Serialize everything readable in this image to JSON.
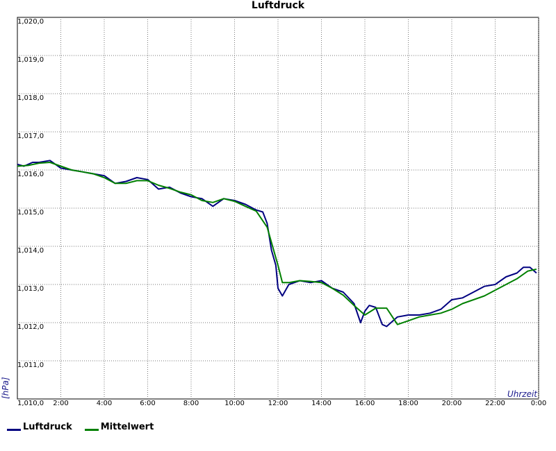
{
  "chart_data": {
    "type": "line",
    "title": "Luftdruck",
    "xlabel": "Uhrzeit",
    "ylabel": "[hPa]",
    "xlim": [
      0,
      24
    ],
    "ylim": [
      1010.0,
      1020.0
    ],
    "grid": true,
    "legend_position": "bottom-left",
    "y_ticks": [
      "1,010,0",
      "1,011,0",
      "1,012,0",
      "1,013,0",
      "1,014,0",
      "1,015,0",
      "1,016,0",
      "1,017,0",
      "1,018,0",
      "1,019,0",
      "1,020,0"
    ],
    "x_ticks": [
      "2:00",
      "4:00",
      "6:00",
      "8:00",
      "10:00",
      "12:00",
      "14:00",
      "16:00",
      "18:00",
      "20:00",
      "22:00",
      "0:00"
    ],
    "series": [
      {
        "name": "Luftdruck",
        "color": "#000080",
        "x": [
          0,
          0.3,
          0.7,
          1.0,
          1.5,
          2.0,
          2.5,
          3.0,
          3.5,
          4.0,
          4.5,
          5.0,
          5.5,
          6.0,
          6.5,
          7.0,
          7.5,
          8.0,
          8.5,
          9.0,
          9.5,
          10.0,
          10.5,
          11.0,
          11.3,
          11.5,
          11.7,
          11.9,
          12.0,
          12.2,
          12.5,
          13.0,
          13.5,
          14.0,
          14.5,
          15.0,
          15.5,
          15.8,
          16.0,
          16.2,
          16.5,
          16.8,
          17.0,
          17.2,
          17.5,
          18.0,
          18.5,
          19.0,
          19.5,
          20.0,
          20.5,
          21.0,
          21.5,
          22.0,
          22.5,
          23.0,
          23.3,
          23.6,
          23.9
        ],
        "y": [
          1016.15,
          1016.1,
          1016.2,
          1016.2,
          1016.25,
          1016.05,
          1016.0,
          1015.95,
          1015.9,
          1015.85,
          1015.65,
          1015.7,
          1015.8,
          1015.75,
          1015.5,
          1015.55,
          1015.4,
          1015.3,
          1015.25,
          1015.05,
          1015.25,
          1015.2,
          1015.1,
          1014.95,
          1014.9,
          1014.6,
          1013.9,
          1013.5,
          1012.9,
          1012.7,
          1013.0,
          1013.1,
          1013.05,
          1013.1,
          1012.9,
          1012.8,
          1012.5,
          1012.0,
          1012.3,
          1012.45,
          1012.4,
          1011.95,
          1011.9,
          1012.0,
          1012.15,
          1012.2,
          1012.2,
          1012.25,
          1012.35,
          1012.6,
          1012.65,
          1012.8,
          1012.95,
          1013.0,
          1013.2,
          1013.3,
          1013.45,
          1013.45,
          1013.3
        ]
      },
      {
        "name": "Mittelwert",
        "color": "#008000",
        "x": [
          0,
          0.5,
          1.0,
          1.5,
          2.0,
          2.5,
          3.0,
          3.5,
          4.0,
          4.5,
          5.0,
          5.5,
          6.0,
          6.5,
          7.0,
          7.5,
          8.0,
          8.5,
          9.0,
          9.5,
          10.0,
          10.5,
          11.0,
          11.5,
          12.0,
          12.2,
          12.5,
          13.0,
          13.5,
          14.0,
          14.5,
          15.0,
          15.5,
          16.0,
          16.5,
          17.0,
          17.5,
          18.0,
          18.5,
          19.0,
          19.5,
          20.0,
          20.5,
          21.0,
          21.5,
          22.0,
          22.5,
          23.0,
          23.5,
          23.9
        ],
        "y": [
          1016.1,
          1016.12,
          1016.18,
          1016.2,
          1016.1,
          1016.0,
          1015.95,
          1015.9,
          1015.8,
          1015.65,
          1015.65,
          1015.72,
          1015.72,
          1015.6,
          1015.52,
          1015.42,
          1015.35,
          1015.2,
          1015.15,
          1015.25,
          1015.18,
          1015.05,
          1014.92,
          1014.5,
          1013.5,
          1013.05,
          1013.05,
          1013.1,
          1013.08,
          1013.05,
          1012.9,
          1012.72,
          1012.45,
          1012.2,
          1012.38,
          1012.38,
          1011.95,
          1012.05,
          1012.15,
          1012.2,
          1012.25,
          1012.35,
          1012.5,
          1012.6,
          1012.7,
          1012.85,
          1013.0,
          1013.15,
          1013.35,
          1013.4
        ]
      }
    ]
  }
}
